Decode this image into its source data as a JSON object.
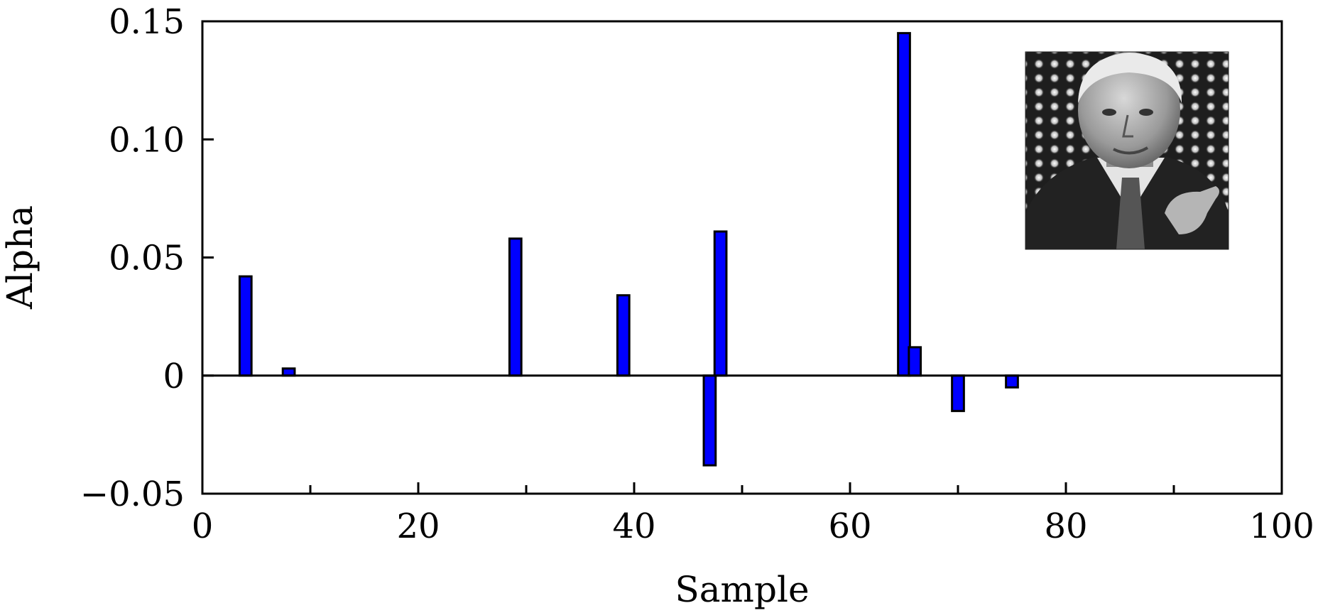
{
  "chart_data": {
    "type": "bar",
    "xlabel": "Sample",
    "ylabel": "Alpha",
    "xlim": [
      0,
      100
    ],
    "ylim": [
      -0.05,
      0.15
    ],
    "xticks": [
      0,
      20,
      40,
      60,
      80,
      100
    ],
    "xticks_minor": [
      10,
      30,
      50,
      70,
      90
    ],
    "yticks": [
      -0.05,
      0,
      0.05,
      0.1,
      0.15
    ],
    "ytick_labels": [
      "−0.05",
      "0",
      "0.05",
      "0.10",
      "0.15"
    ],
    "xtick_labels": [
      "0",
      "20",
      "40",
      "60",
      "80",
      "100"
    ],
    "grid": false,
    "legend": "none",
    "bar_color": "#0000ff",
    "points": [
      {
        "x": 4,
        "value": 0.042
      },
      {
        "x": 8,
        "value": 0.003
      },
      {
        "x": 29,
        "value": 0.058
      },
      {
        "x": 39,
        "value": 0.034
      },
      {
        "x": 47,
        "value": -0.038
      },
      {
        "x": 48,
        "value": 0.061
      },
      {
        "x": 65,
        "value": 0.145
      },
      {
        "x": 66,
        "value": 0.012
      },
      {
        "x": 70,
        "value": -0.015
      },
      {
        "x": 75,
        "value": -0.005
      }
    ],
    "inset_image": "grayscale face photograph"
  }
}
